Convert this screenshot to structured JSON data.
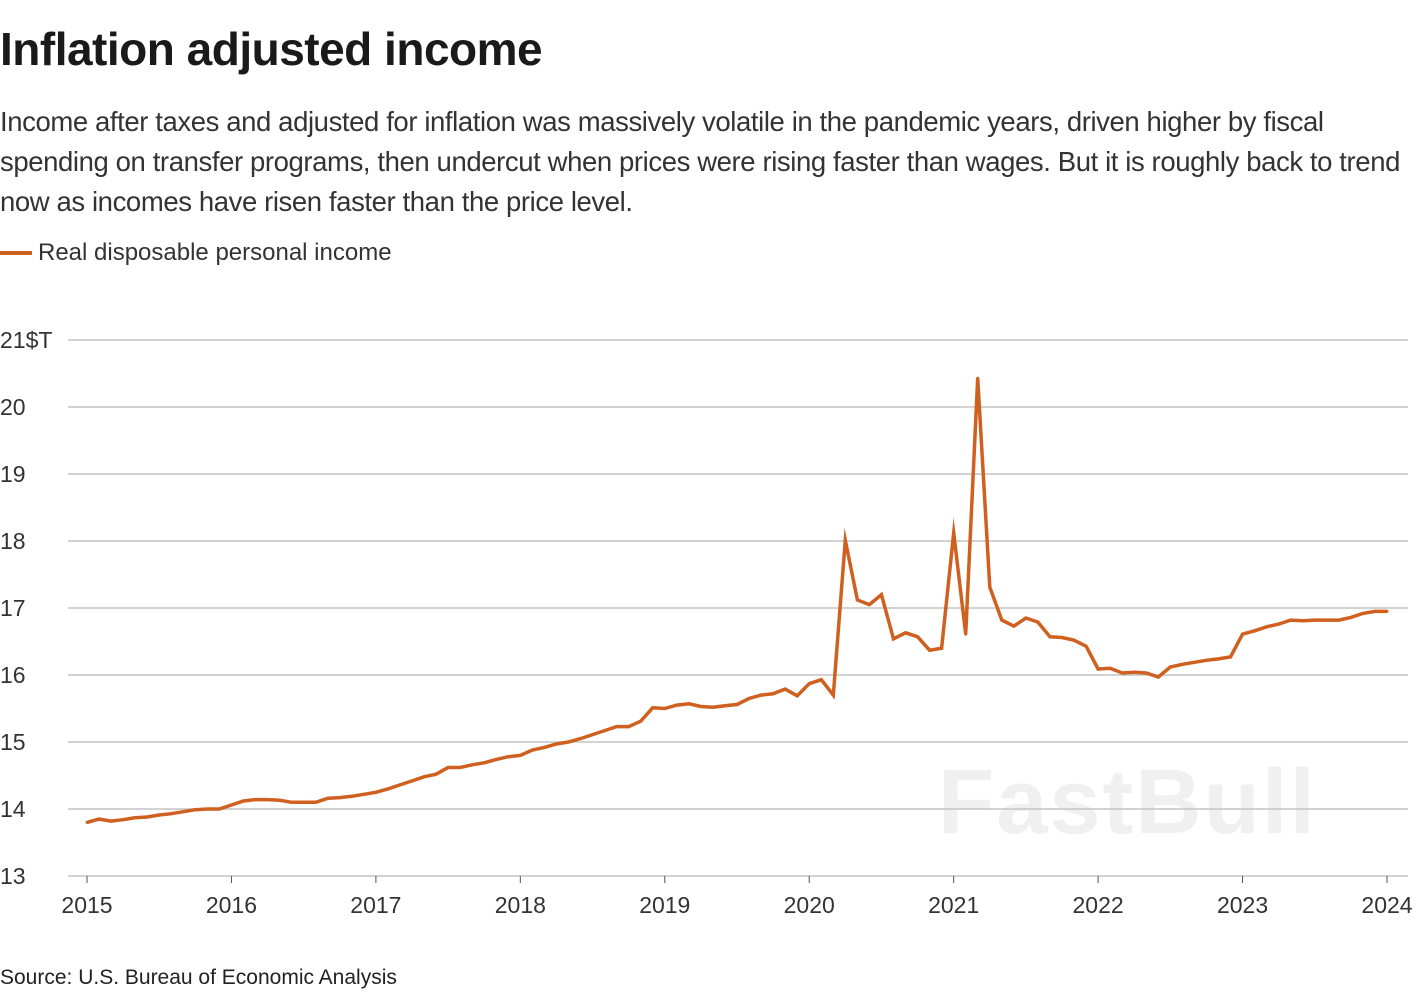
{
  "title": "Inflation adjusted income",
  "subtitle": "Income after taxes and adjusted for inflation was massively volatile in the pandemic years, driven higher by fiscal spending on transfer programs, then undercut when prices were rising faster than wages. But it is roughly back to trend now as incomes have risen faster than the price level.",
  "source": "Source: U.S. Bureau of Economic Analysis",
  "watermark": "FastBull",
  "chart_data": {
    "type": "line",
    "title": "Inflation adjusted income",
    "xlabel": "",
    "ylabel": "",
    "y_unit": "$T",
    "ylim": [
      13,
      21
    ],
    "xlim": [
      "2015-01",
      "2024-01"
    ],
    "grid": "horizontal",
    "legend_position": "top-left",
    "y_ticks": [
      "13",
      "14",
      "15",
      "16",
      "17",
      "18",
      "19",
      "20",
      "21$T"
    ],
    "x_ticks": [
      "2015",
      "2016",
      "2017",
      "2018",
      "2019",
      "2020",
      "2021",
      "2022",
      "2023",
      "2024"
    ],
    "colors": {
      "line": "#d0601f",
      "grid": "#c4c4c4"
    },
    "series": [
      {
        "name": "Real disposable personal income",
        "start": "2015-01",
        "frequency": "monthly",
        "values": [
          13.8,
          13.85,
          13.82,
          13.84,
          13.87,
          13.88,
          13.91,
          13.93,
          13.96,
          13.99,
          14.0,
          14.0,
          14.06,
          14.12,
          14.14,
          14.14,
          14.13,
          14.1,
          14.1,
          14.1,
          14.16,
          14.17,
          14.19,
          14.22,
          14.25,
          14.3,
          14.36,
          14.42,
          14.48,
          14.52,
          14.62,
          14.62,
          14.66,
          14.69,
          14.74,
          14.78,
          14.8,
          14.88,
          14.92,
          14.97,
          15.0,
          15.05,
          15.11,
          15.17,
          15.23,
          15.23,
          15.31,
          15.51,
          15.5,
          15.55,
          15.57,
          15.53,
          15.52,
          15.54,
          15.56,
          15.65,
          15.7,
          15.72,
          15.79,
          15.69,
          15.87,
          15.93,
          15.7,
          18.01,
          17.12,
          17.05,
          17.2,
          16.54,
          16.63,
          16.57,
          16.37,
          16.4,
          18.12,
          16.61,
          20.43,
          17.31,
          16.82,
          16.73,
          16.85,
          16.79,
          16.57,
          16.56,
          16.52,
          16.43,
          16.09,
          16.1,
          16.03,
          16.04,
          16.03,
          15.97,
          16.12,
          16.16,
          16.19,
          16.22,
          16.24,
          16.27,
          16.61,
          16.66,
          16.72,
          16.76,
          16.82,
          16.81,
          16.82,
          16.82,
          16.82,
          16.86,
          16.92,
          16.95,
          16.95
        ]
      }
    ]
  }
}
